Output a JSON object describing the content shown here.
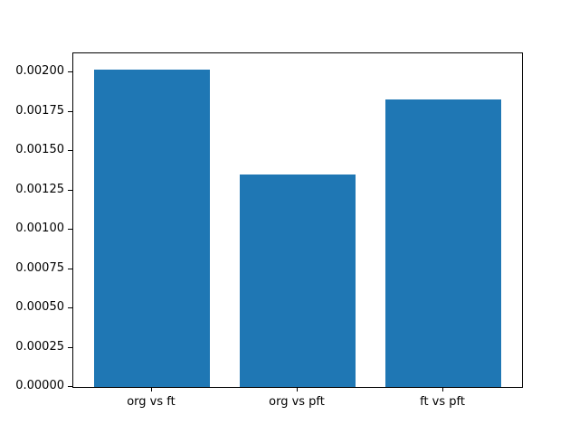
{
  "chart_data": {
    "type": "bar",
    "categories": [
      "org vs ft",
      "org vs pft",
      "ft vs pft"
    ],
    "values": [
      0.00202,
      0.00135,
      0.00183
    ],
    "title": "",
    "xlabel": "",
    "ylabel": "",
    "ylim": [
      0,
      0.0021212
    ],
    "xlim": [
      -0.54,
      2.54
    ],
    "bar_width": 0.8,
    "yticks": [
      0,
      0.00025,
      0.0005,
      0.00075,
      0.001,
      0.00125,
      0.0015,
      0.00175,
      0.002
    ],
    "ytick_labels": [
      "0.00000",
      "0.00025",
      "0.00050",
      "0.00075",
      "0.00100",
      "0.00125",
      "0.00150",
      "0.00175",
      "0.00200"
    ],
    "bar_color": "#1f77b4",
    "axis_color": "#000000",
    "text_color": "#000000",
    "background_color": "#ffffff",
    "grid": false,
    "legend": false
  }
}
